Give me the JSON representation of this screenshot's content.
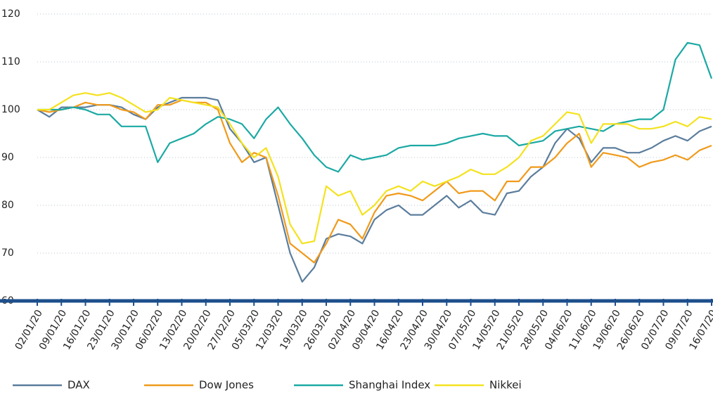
{
  "chart_data": {
    "type": "line",
    "categories": [
      "02/01/20",
      null,
      "09/01/20",
      null,
      "16/01/20",
      null,
      "23/01/20",
      null,
      "30/01/20",
      null,
      "06/02/20",
      null,
      "13/02/20",
      null,
      "20/02/20",
      null,
      "27/02/20",
      null,
      "05/03/20",
      null,
      "12/03/20",
      null,
      "19/03/20",
      null,
      "26/03/20",
      null,
      "02/04/20",
      null,
      "09/04/20",
      null,
      "16/04/20",
      null,
      "23/04/20",
      null,
      "30/04/20",
      null,
      "07/05/20",
      null,
      "14/05/20",
      null,
      "21/05/20",
      null,
      "28/05/20",
      null,
      "04/06/20",
      null,
      "11/06/20",
      null,
      "19/06/20",
      null,
      "26/06/20",
      null,
      "02/07/20",
      null,
      "09/07/20",
      null,
      "16/07/20"
    ],
    "series": [
      {
        "name": "DAX",
        "color": "#5b7d9c",
        "values": [
          100,
          98.5,
          100.5,
          100.5,
          100.5,
          101,
          101,
          100.5,
          99,
          98,
          100.5,
          101.5,
          102.5,
          102.5,
          102.5,
          102,
          96,
          93,
          89,
          90,
          80,
          70,
          64,
          67,
          73,
          74,
          73.5,
          72,
          77,
          79,
          80,
          78,
          78,
          80,
          82,
          79.5,
          81,
          78.5,
          78,
          82.5,
          83,
          86,
          88,
          93,
          96,
          94,
          89,
          92,
          92,
          91,
          91,
          92,
          93.5,
          94.5,
          93.5,
          95.5,
          96.5
        ]
      },
      {
        "name": "Dow Jones",
        "color": "#f09a1a",
        "values": [
          100,
          99.5,
          100,
          100.5,
          101.5,
          101,
          101,
          100,
          99.5,
          98,
          101,
          101,
          102,
          101.5,
          101.5,
          100,
          93,
          89,
          91,
          90,
          82,
          72,
          70,
          68,
          72,
          77,
          76,
          73,
          78.5,
          82,
          82.5,
          82,
          81,
          83,
          85,
          82.5,
          83,
          83,
          81,
          85,
          85,
          88,
          88,
          90,
          93,
          95,
          88,
          91,
          90.5,
          90,
          88,
          89,
          89.5,
          90.5,
          89.5,
          91.5,
          92.5
        ]
      },
      {
        "name": "Shanghai Index",
        "color": "#1ba9a3",
        "values": [
          100,
          100,
          100,
          100.5,
          100,
          99,
          99,
          96.5,
          96.5,
          96.5,
          89,
          93,
          94,
          95,
          97,
          98.5,
          98,
          97,
          94,
          98,
          100.5,
          97,
          94,
          90.5,
          88,
          87,
          90.5,
          89.5,
          90,
          90.5,
          92,
          92.5,
          92.5,
          92.5,
          93,
          94,
          94.5,
          95,
          94.5,
          94.5,
          92.5,
          93,
          93.5,
          95.5,
          96,
          96.5,
          96,
          95.5,
          97,
          97.5,
          98,
          98,
          100,
          110.5,
          114,
          113.5,
          106.5
        ]
      },
      {
        "name": "Nikkei",
        "color": "#f4e21e",
        "values": [
          100,
          100,
          101.5,
          103,
          103.5,
          103,
          103.5,
          102.5,
          101,
          99.5,
          100,
          102.5,
          102,
          101.5,
          101,
          100.5,
          97,
          93,
          90,
          92,
          86,
          76,
          72,
          72.5,
          84,
          82,
          83,
          78,
          80,
          83,
          84,
          83,
          85,
          84,
          85,
          86,
          87.5,
          86.5,
          86.5,
          88,
          90,
          93.5,
          94.5,
          97,
          99.5,
          99,
          93,
          97,
          97,
          97,
          96,
          96,
          96.5,
          97.5,
          96.5,
          98.5,
          98
        ]
      }
    ],
    "ylim": [
      60,
      120
    ],
    "yticks": [
      60,
      70,
      80,
      90,
      100,
      110,
      120
    ],
    "grid": true,
    "legend": "bottom"
  }
}
